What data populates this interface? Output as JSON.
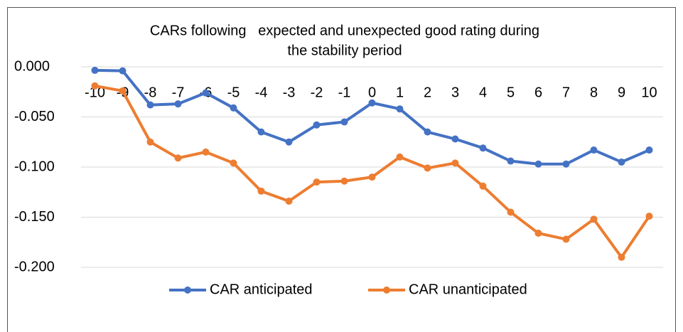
{
  "chart_data": {
    "type": "line",
    "title": [
      "CARs following   expected and unexpected good rating during",
      "the stability period"
    ],
    "categories": [
      "-10",
      "-9",
      "-8",
      "-7",
      "-6",
      "-5",
      "-4",
      "-3",
      "-2",
      "-1",
      "0",
      "1",
      "2",
      "3",
      "4",
      "5",
      "6",
      "7",
      "8",
      "9",
      "10"
    ],
    "series": [
      {
        "name": "CAR anticipated",
        "color": "#4472c4",
        "values": [
          -0.0035,
          -0.004,
          -0.038,
          -0.037,
          -0.026,
          -0.041,
          -0.065,
          -0.075,
          -0.058,
          -0.055,
          -0.036,
          -0.042,
          -0.065,
          -0.072,
          -0.081,
          -0.094,
          -0.097,
          -0.097,
          -0.083,
          -0.095,
          -0.083
        ]
      },
      {
        "name": "CAR unanticipated",
        "color": "#ed7d31",
        "values": [
          -0.019,
          -0.024,
          -0.075,
          -0.091,
          -0.085,
          -0.096,
          -0.124,
          -0.134,
          -0.115,
          -0.114,
          -0.11,
          -0.09,
          -0.101,
          -0.096,
          -0.119,
          -0.145,
          -0.166,
          -0.172,
          -0.152,
          -0.19,
          -0.149
        ]
      }
    ],
    "ylim": [
      -0.2,
      0
    ],
    "yticks": [
      {
        "value": 0,
        "label": "0.000"
      },
      {
        "value": -0.05,
        "label": "-0.050"
      },
      {
        "value": -0.1,
        "label": "-0.100"
      },
      {
        "value": -0.15,
        "label": "-0.150"
      },
      {
        "value": -0.2,
        "label": "-0.200"
      }
    ],
    "grid": true,
    "legend": "bottom"
  }
}
